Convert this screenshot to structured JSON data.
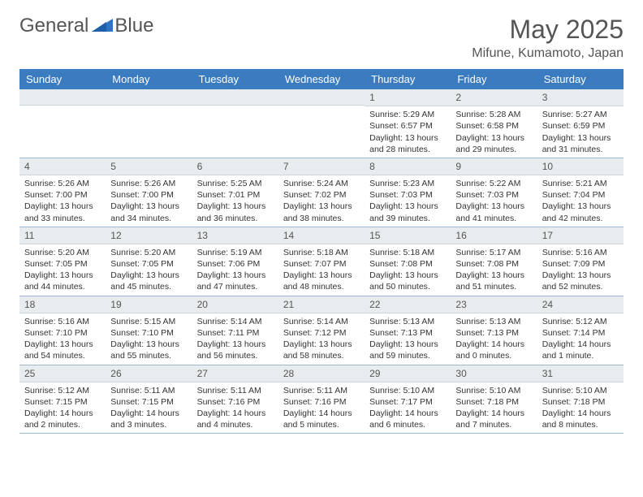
{
  "brand": {
    "word1": "General",
    "word2": "Blue"
  },
  "title": "May 2025",
  "location": "Mifune, Kumamoto, Japan",
  "colors": {
    "header_bg": "#3b7bbf",
    "daynum_bg": "#e8ecef",
    "row_border": "#9cb8d6",
    "text": "#333333",
    "muted": "#555555",
    "logo_blue": "#2e75c6"
  },
  "weekdays": [
    "Sunday",
    "Monday",
    "Tuesday",
    "Wednesday",
    "Thursday",
    "Friday",
    "Saturday"
  ],
  "weeks": [
    [
      {
        "n": "",
        "sr": "",
        "ss": "",
        "dl": ""
      },
      {
        "n": "",
        "sr": "",
        "ss": "",
        "dl": ""
      },
      {
        "n": "",
        "sr": "",
        "ss": "",
        "dl": ""
      },
      {
        "n": "",
        "sr": "",
        "ss": "",
        "dl": ""
      },
      {
        "n": "1",
        "sr": "Sunrise: 5:29 AM",
        "ss": "Sunset: 6:57 PM",
        "dl": "Daylight: 13 hours and 28 minutes."
      },
      {
        "n": "2",
        "sr": "Sunrise: 5:28 AM",
        "ss": "Sunset: 6:58 PM",
        "dl": "Daylight: 13 hours and 29 minutes."
      },
      {
        "n": "3",
        "sr": "Sunrise: 5:27 AM",
        "ss": "Sunset: 6:59 PM",
        "dl": "Daylight: 13 hours and 31 minutes."
      }
    ],
    [
      {
        "n": "4",
        "sr": "Sunrise: 5:26 AM",
        "ss": "Sunset: 7:00 PM",
        "dl": "Daylight: 13 hours and 33 minutes."
      },
      {
        "n": "5",
        "sr": "Sunrise: 5:26 AM",
        "ss": "Sunset: 7:00 PM",
        "dl": "Daylight: 13 hours and 34 minutes."
      },
      {
        "n": "6",
        "sr": "Sunrise: 5:25 AM",
        "ss": "Sunset: 7:01 PM",
        "dl": "Daylight: 13 hours and 36 minutes."
      },
      {
        "n": "7",
        "sr": "Sunrise: 5:24 AM",
        "ss": "Sunset: 7:02 PM",
        "dl": "Daylight: 13 hours and 38 minutes."
      },
      {
        "n": "8",
        "sr": "Sunrise: 5:23 AM",
        "ss": "Sunset: 7:03 PM",
        "dl": "Daylight: 13 hours and 39 minutes."
      },
      {
        "n": "9",
        "sr": "Sunrise: 5:22 AM",
        "ss": "Sunset: 7:03 PM",
        "dl": "Daylight: 13 hours and 41 minutes."
      },
      {
        "n": "10",
        "sr": "Sunrise: 5:21 AM",
        "ss": "Sunset: 7:04 PM",
        "dl": "Daylight: 13 hours and 42 minutes."
      }
    ],
    [
      {
        "n": "11",
        "sr": "Sunrise: 5:20 AM",
        "ss": "Sunset: 7:05 PM",
        "dl": "Daylight: 13 hours and 44 minutes."
      },
      {
        "n": "12",
        "sr": "Sunrise: 5:20 AM",
        "ss": "Sunset: 7:05 PM",
        "dl": "Daylight: 13 hours and 45 minutes."
      },
      {
        "n": "13",
        "sr": "Sunrise: 5:19 AM",
        "ss": "Sunset: 7:06 PM",
        "dl": "Daylight: 13 hours and 47 minutes."
      },
      {
        "n": "14",
        "sr": "Sunrise: 5:18 AM",
        "ss": "Sunset: 7:07 PM",
        "dl": "Daylight: 13 hours and 48 minutes."
      },
      {
        "n": "15",
        "sr": "Sunrise: 5:18 AM",
        "ss": "Sunset: 7:08 PM",
        "dl": "Daylight: 13 hours and 50 minutes."
      },
      {
        "n": "16",
        "sr": "Sunrise: 5:17 AM",
        "ss": "Sunset: 7:08 PM",
        "dl": "Daylight: 13 hours and 51 minutes."
      },
      {
        "n": "17",
        "sr": "Sunrise: 5:16 AM",
        "ss": "Sunset: 7:09 PM",
        "dl": "Daylight: 13 hours and 52 minutes."
      }
    ],
    [
      {
        "n": "18",
        "sr": "Sunrise: 5:16 AM",
        "ss": "Sunset: 7:10 PM",
        "dl": "Daylight: 13 hours and 54 minutes."
      },
      {
        "n": "19",
        "sr": "Sunrise: 5:15 AM",
        "ss": "Sunset: 7:10 PM",
        "dl": "Daylight: 13 hours and 55 minutes."
      },
      {
        "n": "20",
        "sr": "Sunrise: 5:14 AM",
        "ss": "Sunset: 7:11 PM",
        "dl": "Daylight: 13 hours and 56 minutes."
      },
      {
        "n": "21",
        "sr": "Sunrise: 5:14 AM",
        "ss": "Sunset: 7:12 PM",
        "dl": "Daylight: 13 hours and 58 minutes."
      },
      {
        "n": "22",
        "sr": "Sunrise: 5:13 AM",
        "ss": "Sunset: 7:13 PM",
        "dl": "Daylight: 13 hours and 59 minutes."
      },
      {
        "n": "23",
        "sr": "Sunrise: 5:13 AM",
        "ss": "Sunset: 7:13 PM",
        "dl": "Daylight: 14 hours and 0 minutes."
      },
      {
        "n": "24",
        "sr": "Sunrise: 5:12 AM",
        "ss": "Sunset: 7:14 PM",
        "dl": "Daylight: 14 hours and 1 minute."
      }
    ],
    [
      {
        "n": "25",
        "sr": "Sunrise: 5:12 AM",
        "ss": "Sunset: 7:15 PM",
        "dl": "Daylight: 14 hours and 2 minutes."
      },
      {
        "n": "26",
        "sr": "Sunrise: 5:11 AM",
        "ss": "Sunset: 7:15 PM",
        "dl": "Daylight: 14 hours and 3 minutes."
      },
      {
        "n": "27",
        "sr": "Sunrise: 5:11 AM",
        "ss": "Sunset: 7:16 PM",
        "dl": "Daylight: 14 hours and 4 minutes."
      },
      {
        "n": "28",
        "sr": "Sunrise: 5:11 AM",
        "ss": "Sunset: 7:16 PM",
        "dl": "Daylight: 14 hours and 5 minutes."
      },
      {
        "n": "29",
        "sr": "Sunrise: 5:10 AM",
        "ss": "Sunset: 7:17 PM",
        "dl": "Daylight: 14 hours and 6 minutes."
      },
      {
        "n": "30",
        "sr": "Sunrise: 5:10 AM",
        "ss": "Sunset: 7:18 PM",
        "dl": "Daylight: 14 hours and 7 minutes."
      },
      {
        "n": "31",
        "sr": "Sunrise: 5:10 AM",
        "ss": "Sunset: 7:18 PM",
        "dl": "Daylight: 14 hours and 8 minutes."
      }
    ]
  ]
}
